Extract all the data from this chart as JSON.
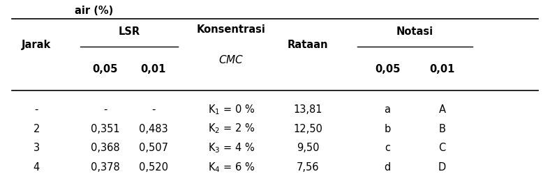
{
  "title_partial": "air (%)",
  "col_headers": {
    "jarak": "Jarak",
    "lsr": "LSR",
    "lsr_005": "0,05",
    "lsr_001": "0,01",
    "konsentrasi_line1": "Konsentrasi",
    "konsentrasi_line2": "CMC",
    "rataan": "Rataan",
    "notasi": "Notasi",
    "notasi_005": "0,05",
    "notasi_001": "0,01"
  },
  "rows": [
    [
      "-",
      "-",
      "-",
      "K$_1$ = 0 %",
      "13,81",
      "a",
      "A"
    ],
    [
      "2",
      "0,351",
      "0,483",
      "K$_2$ = 2 %",
      "12,50",
      "b",
      "B"
    ],
    [
      "3",
      "0,368",
      "0,507",
      "K$_3$ = 4 %",
      "9,50",
      "c",
      "C"
    ],
    [
      "4",
      "0,378",
      "0,520",
      "K$_4$ = 6 %",
      "7,56",
      "d",
      "D"
    ]
  ],
  "bg_color": "#ffffff",
  "text_color": "#000000",
  "font_size": 10.5
}
